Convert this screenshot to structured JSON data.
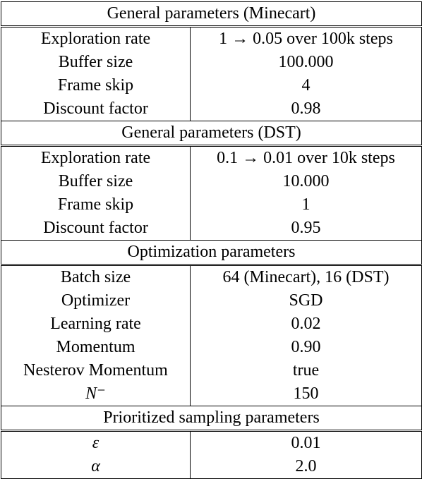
{
  "sections": [
    {
      "title": "General parameters (Minecart)",
      "rows": [
        [
          "Exploration rate",
          "1 → 0.05 over 100k steps"
        ],
        [
          "Buffer size",
          "100.000"
        ],
        [
          "Frame skip",
          "4"
        ],
        [
          "Discount factor",
          "0.98"
        ]
      ]
    },
    {
      "title": "General parameters (DST)",
      "rows": [
        [
          "Exploration rate",
          "0.1 → 0.01 over 10k steps"
        ],
        [
          "Buffer size",
          "10.000"
        ],
        [
          "Frame skip",
          "1"
        ],
        [
          "Discount factor",
          "0.95"
        ]
      ]
    },
    {
      "title": "Optimization parameters",
      "rows": [
        [
          "Batch size",
          "64 (Minecart), 16 (DST)"
        ],
        [
          "Optimizer",
          "SGD"
        ],
        [
          "Learning rate",
          "0.02"
        ],
        [
          "Momentum",
          "0.90"
        ],
        [
          "Nesterov Momentum",
          "true"
        ],
        [
          "N⁻",
          "150"
        ]
      ]
    },
    {
      "title": "Prioritized sampling parameters",
      "rows": [
        [
          "ε",
          "0.01"
        ],
        [
          "α",
          "2.0"
        ]
      ]
    }
  ]
}
